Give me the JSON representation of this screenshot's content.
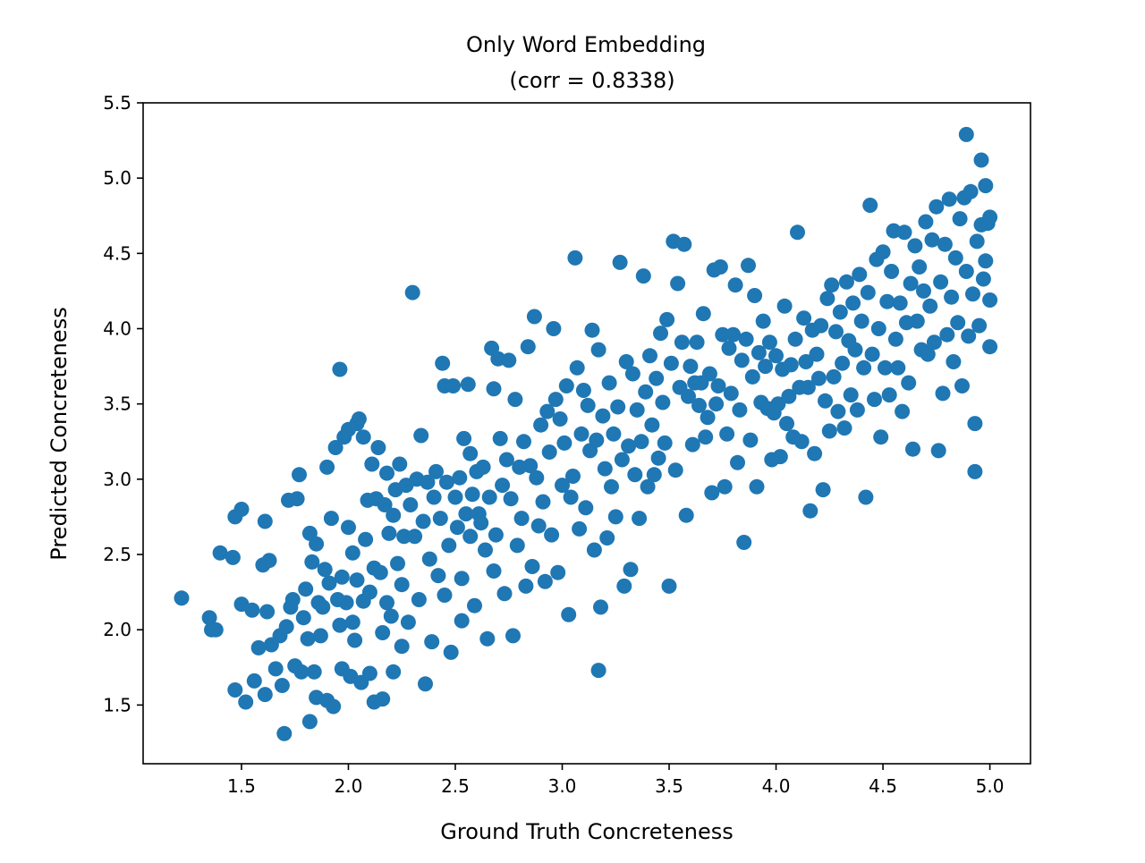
{
  "chart_data": {
    "type": "scatter",
    "title_line1": "Only Word Embedding",
    "title_line2": "(corr = 0.8338)",
    "xlabel": "Ground Truth Concreteness",
    "ylabel": "Predicted Concreteness",
    "xlim": [
      1.04,
      5.19
    ],
    "ylim": [
      1.11,
      5.5
    ],
    "xticks": [
      1.5,
      2.0,
      2.5,
      3.0,
      3.5,
      4.0,
      4.5,
      5.0
    ],
    "xtick_labels": [
      "1.5",
      "2.0",
      "2.5",
      "3.0",
      "3.5",
      "4.0",
      "4.5",
      "5.0"
    ],
    "yticks": [
      1.5,
      2.0,
      2.5,
      3.0,
      3.5,
      4.0,
      4.5,
      5.0,
      5.5
    ],
    "ytick_labels": [
      "1.5",
      "2.0",
      "2.5",
      "3.0",
      "3.5",
      "4.0",
      "4.5",
      "5.0",
      "5.5"
    ],
    "marker_color": "#1f77b4",
    "grid": false,
    "points": [
      [
        1.22,
        2.21
      ],
      [
        1.35,
        2.08
      ],
      [
        1.36,
        2.0
      ],
      [
        1.38,
        2.0
      ],
      [
        1.4,
        2.51
      ],
      [
        1.46,
        2.48
      ],
      [
        1.47,
        1.6
      ],
      [
        1.47,
        2.75
      ],
      [
        1.5,
        2.8
      ],
      [
        1.5,
        2.17
      ],
      [
        1.52,
        1.52
      ],
      [
        1.55,
        2.13
      ],
      [
        1.56,
        1.66
      ],
      [
        1.58,
        1.88
      ],
      [
        1.6,
        2.43
      ],
      [
        1.61,
        2.72
      ],
      [
        1.61,
        1.57
      ],
      [
        1.62,
        2.12
      ],
      [
        1.63,
        2.46
      ],
      [
        1.64,
        1.9
      ],
      [
        1.66,
        1.74
      ],
      [
        1.68,
        1.96
      ],
      [
        1.69,
        1.63
      ],
      [
        1.7,
        1.31
      ],
      [
        1.71,
        2.02
      ],
      [
        1.72,
        2.86
      ],
      [
        1.73,
        2.15
      ],
      [
        1.74,
        2.2
      ],
      [
        1.75,
        1.76
      ],
      [
        1.76,
        2.87
      ],
      [
        1.77,
        3.03
      ],
      [
        1.78,
        1.72
      ],
      [
        1.79,
        2.08
      ],
      [
        1.8,
        2.27
      ],
      [
        1.81,
        1.94
      ],
      [
        1.82,
        2.64
      ],
      [
        1.82,
        1.39
      ],
      [
        1.83,
        2.45
      ],
      [
        1.84,
        1.72
      ],
      [
        1.85,
        2.57
      ],
      [
        1.85,
        1.55
      ],
      [
        1.86,
        2.18
      ],
      [
        1.87,
        1.96
      ],
      [
        1.88,
        2.15
      ],
      [
        1.89,
        2.4
      ],
      [
        1.9,
        1.53
      ],
      [
        1.9,
        3.08
      ],
      [
        1.91,
        2.31
      ],
      [
        1.92,
        2.74
      ],
      [
        1.93,
        1.49
      ],
      [
        1.94,
        3.21
      ],
      [
        1.95,
        2.2
      ],
      [
        1.96,
        3.73
      ],
      [
        1.96,
        2.03
      ],
      [
        1.97,
        2.35
      ],
      [
        1.97,
        1.74
      ],
      [
        1.98,
        3.28
      ],
      [
        1.99,
        2.18
      ],
      [
        2.0,
        3.33
      ],
      [
        2.0,
        2.68
      ],
      [
        2.01,
        1.69
      ],
      [
        2.02,
        2.51
      ],
      [
        2.02,
        2.05
      ],
      [
        2.03,
        1.93
      ],
      [
        2.04,
        3.37
      ],
      [
        2.04,
        2.33
      ],
      [
        2.05,
        3.4
      ],
      [
        2.06,
        1.65
      ],
      [
        2.07,
        3.28
      ],
      [
        2.07,
        2.19
      ],
      [
        2.08,
        2.6
      ],
      [
        2.09,
        2.86
      ],
      [
        2.1,
        1.71
      ],
      [
        2.1,
        2.25
      ],
      [
        2.11,
        3.1
      ],
      [
        2.12,
        2.41
      ],
      [
        2.12,
        1.52
      ],
      [
        2.13,
        2.87
      ],
      [
        2.14,
        3.21
      ],
      [
        2.15,
        2.38
      ],
      [
        2.16,
        1.98
      ],
      [
        2.16,
        1.54
      ],
      [
        2.17,
        2.83
      ],
      [
        2.18,
        3.04
      ],
      [
        2.18,
        2.18
      ],
      [
        2.19,
        2.64
      ],
      [
        2.2,
        2.09
      ],
      [
        2.21,
        2.76
      ],
      [
        2.21,
        1.72
      ],
      [
        2.22,
        2.93
      ],
      [
        2.23,
        2.44
      ],
      [
        2.24,
        3.1
      ],
      [
        2.25,
        2.3
      ],
      [
        2.25,
        1.89
      ],
      [
        2.26,
        2.62
      ],
      [
        2.27,
        2.96
      ],
      [
        2.28,
        2.05
      ],
      [
        2.29,
        2.83
      ],
      [
        2.3,
        4.24
      ],
      [
        2.31,
        2.62
      ],
      [
        2.32,
        3.0
      ],
      [
        2.33,
        2.2
      ],
      [
        2.34,
        3.29
      ],
      [
        2.35,
        2.72
      ],
      [
        2.36,
        1.64
      ],
      [
        2.37,
        2.98
      ],
      [
        2.38,
        2.47
      ],
      [
        2.39,
        1.92
      ],
      [
        2.4,
        2.88
      ],
      [
        2.41,
        3.05
      ],
      [
        2.42,
        2.36
      ],
      [
        2.43,
        2.74
      ],
      [
        2.44,
        3.77
      ],
      [
        2.45,
        3.62
      ],
      [
        2.45,
        2.23
      ],
      [
        2.46,
        2.98
      ],
      [
        2.47,
        2.56
      ],
      [
        2.48,
        1.85
      ],
      [
        2.49,
        3.62
      ],
      [
        2.5,
        2.88
      ],
      [
        2.51,
        2.68
      ],
      [
        2.52,
        3.01
      ],
      [
        2.53,
        2.34
      ],
      [
        2.53,
        2.06
      ],
      [
        2.54,
        3.27
      ],
      [
        2.55,
        2.77
      ],
      [
        2.56,
        3.63
      ],
      [
        2.57,
        2.62
      ],
      [
        2.57,
        3.17
      ],
      [
        2.58,
        2.9
      ],
      [
        2.59,
        2.16
      ],
      [
        2.6,
        3.05
      ],
      [
        2.61,
        2.77
      ],
      [
        2.62,
        2.71
      ],
      [
        2.63,
        3.08
      ],
      [
        2.64,
        2.53
      ],
      [
        2.65,
        1.94
      ],
      [
        2.66,
        2.88
      ],
      [
        2.67,
        3.87
      ],
      [
        2.68,
        2.39
      ],
      [
        2.68,
        3.6
      ],
      [
        2.69,
        2.63
      ],
      [
        2.7,
        3.8
      ],
      [
        2.71,
        3.27
      ],
      [
        2.72,
        2.96
      ],
      [
        2.73,
        2.24
      ],
      [
        2.74,
        3.13
      ],
      [
        2.75,
        3.79
      ],
      [
        2.76,
        2.87
      ],
      [
        2.77,
        1.96
      ],
      [
        2.78,
        3.53
      ],
      [
        2.79,
        2.56
      ],
      [
        2.8,
        3.08
      ],
      [
        2.81,
        2.74
      ],
      [
        2.82,
        3.25
      ],
      [
        2.83,
        2.29
      ],
      [
        2.84,
        3.88
      ],
      [
        2.85,
        3.09
      ],
      [
        2.86,
        2.42
      ],
      [
        2.87,
        4.08
      ],
      [
        2.88,
        3.01
      ],
      [
        2.89,
        2.69
      ],
      [
        2.9,
        3.36
      ],
      [
        2.91,
        2.85
      ],
      [
        2.92,
        2.32
      ],
      [
        2.93,
        3.45
      ],
      [
        2.94,
        3.18
      ],
      [
        2.95,
        2.63
      ],
      [
        2.96,
        4.0
      ],
      [
        2.97,
        3.53
      ],
      [
        2.98,
        2.38
      ],
      [
        2.99,
        3.4
      ],
      [
        3.0,
        2.96
      ],
      [
        3.01,
        3.24
      ],
      [
        3.02,
        3.62
      ],
      [
        3.03,
        2.1
      ],
      [
        3.04,
        2.88
      ],
      [
        3.05,
        3.02
      ],
      [
        3.06,
        4.47
      ],
      [
        3.07,
        3.74
      ],
      [
        3.08,
        2.67
      ],
      [
        3.09,
        3.3
      ],
      [
        3.1,
        3.59
      ],
      [
        3.11,
        2.81
      ],
      [
        3.12,
        3.49
      ],
      [
        3.13,
        3.19
      ],
      [
        3.14,
        3.99
      ],
      [
        3.15,
        2.53
      ],
      [
        3.16,
        3.26
      ],
      [
        3.17,
        1.73
      ],
      [
        3.17,
        3.86
      ],
      [
        3.18,
        2.15
      ],
      [
        3.19,
        3.42
      ],
      [
        3.2,
        3.07
      ],
      [
        3.21,
        2.61
      ],
      [
        3.22,
        3.64
      ],
      [
        3.23,
        2.95
      ],
      [
        3.24,
        3.3
      ],
      [
        3.25,
        2.75
      ],
      [
        3.26,
        3.48
      ],
      [
        3.27,
        4.44
      ],
      [
        3.28,
        3.13
      ],
      [
        3.29,
        2.29
      ],
      [
        3.3,
        3.78
      ],
      [
        3.31,
        3.22
      ],
      [
        3.32,
        2.4
      ],
      [
        3.33,
        3.7
      ],
      [
        3.34,
        3.03
      ],
      [
        3.35,
        3.46
      ],
      [
        3.36,
        2.74
      ],
      [
        3.37,
        3.25
      ],
      [
        3.38,
        4.35
      ],
      [
        3.39,
        3.58
      ],
      [
        3.4,
        2.95
      ],
      [
        3.41,
        3.82
      ],
      [
        3.42,
        3.36
      ],
      [
        3.43,
        3.03
      ],
      [
        3.44,
        3.67
      ],
      [
        3.45,
        3.14
      ],
      [
        3.46,
        3.97
      ],
      [
        3.47,
        3.51
      ],
      [
        3.48,
        3.24
      ],
      [
        3.49,
        4.06
      ],
      [
        3.5,
        2.29
      ],
      [
        3.51,
        3.77
      ],
      [
        3.52,
        4.58
      ],
      [
        3.53,
        3.06
      ],
      [
        3.54,
        4.3
      ],
      [
        3.55,
        3.61
      ],
      [
        3.56,
        3.91
      ],
      [
        3.57,
        4.56
      ],
      [
        3.58,
        2.76
      ],
      [
        3.59,
        3.55
      ],
      [
        3.6,
        3.75
      ],
      [
        3.61,
        3.23
      ],
      [
        3.62,
        3.64
      ],
      [
        3.63,
        3.91
      ],
      [
        3.64,
        3.49
      ],
      [
        3.65,
        3.64
      ],
      [
        3.66,
        4.1
      ],
      [
        3.67,
        3.28
      ],
      [
        3.68,
        3.41
      ],
      [
        3.69,
        3.7
      ],
      [
        3.7,
        2.91
      ],
      [
        3.71,
        4.39
      ],
      [
        3.72,
        3.5
      ],
      [
        3.73,
        3.62
      ],
      [
        3.74,
        4.41
      ],
      [
        3.75,
        3.96
      ],
      [
        3.76,
        2.95
      ],
      [
        3.77,
        3.3
      ],
      [
        3.78,
        3.87
      ],
      [
        3.79,
        3.57
      ],
      [
        3.8,
        3.96
      ],
      [
        3.81,
        4.29
      ],
      [
        3.82,
        3.11
      ],
      [
        3.83,
        3.46
      ],
      [
        3.84,
        3.79
      ],
      [
        3.85,
        2.58
      ],
      [
        3.86,
        3.93
      ],
      [
        3.87,
        4.42
      ],
      [
        3.88,
        3.26
      ],
      [
        3.89,
        3.68
      ],
      [
        3.9,
        4.22
      ],
      [
        3.91,
        2.95
      ],
      [
        3.92,
        3.84
      ],
      [
        3.93,
        3.51
      ],
      [
        3.94,
        4.05
      ],
      [
        3.95,
        3.75
      ],
      [
        3.96,
        3.47
      ],
      [
        3.97,
        3.91
      ],
      [
        3.98,
        3.13
      ],
      [
        3.99,
        3.44
      ],
      [
        4.0,
        3.82
      ],
      [
        4.01,
        3.5
      ],
      [
        4.02,
        3.15
      ],
      [
        4.03,
        3.73
      ],
      [
        4.04,
        4.15
      ],
      [
        4.05,
        3.37
      ],
      [
        4.06,
        3.55
      ],
      [
        4.07,
        3.76
      ],
      [
        4.08,
        3.28
      ],
      [
        4.09,
        3.93
      ],
      [
        4.1,
        4.64
      ],
      [
        4.11,
        3.61
      ],
      [
        4.12,
        3.25
      ],
      [
        4.13,
        4.07
      ],
      [
        4.14,
        3.78
      ],
      [
        4.15,
        3.61
      ],
      [
        4.16,
        2.79
      ],
      [
        4.17,
        3.99
      ],
      [
        4.18,
        3.17
      ],
      [
        4.19,
        3.83
      ],
      [
        4.2,
        3.67
      ],
      [
        4.21,
        4.02
      ],
      [
        4.22,
        2.93
      ],
      [
        4.23,
        3.52
      ],
      [
        4.24,
        4.2
      ],
      [
        4.25,
        3.32
      ],
      [
        4.26,
        4.29
      ],
      [
        4.27,
        3.68
      ],
      [
        4.28,
        3.98
      ],
      [
        4.29,
        3.45
      ],
      [
        4.3,
        4.11
      ],
      [
        4.31,
        3.77
      ],
      [
        4.32,
        3.34
      ],
      [
        4.33,
        4.31
      ],
      [
        4.34,
        3.92
      ],
      [
        4.35,
        3.56
      ],
      [
        4.36,
        4.17
      ],
      [
        4.37,
        3.86
      ],
      [
        4.38,
        3.46
      ],
      [
        4.39,
        4.36
      ],
      [
        4.4,
        4.05
      ],
      [
        4.41,
        3.74
      ],
      [
        4.42,
        2.88
      ],
      [
        4.43,
        4.24
      ],
      [
        4.44,
        4.82
      ],
      [
        4.45,
        3.83
      ],
      [
        4.46,
        3.53
      ],
      [
        4.47,
        4.46
      ],
      [
        4.48,
        4.0
      ],
      [
        4.49,
        3.28
      ],
      [
        4.5,
        4.51
      ],
      [
        4.51,
        3.74
      ],
      [
        4.52,
        4.18
      ],
      [
        4.53,
        3.56
      ],
      [
        4.54,
        4.38
      ],
      [
        4.55,
        4.65
      ],
      [
        4.56,
        3.93
      ],
      [
        4.57,
        3.74
      ],
      [
        4.58,
        4.17
      ],
      [
        4.59,
        3.45
      ],
      [
        4.6,
        4.64
      ],
      [
        4.61,
        4.04
      ],
      [
        4.62,
        3.64
      ],
      [
        4.63,
        4.3
      ],
      [
        4.64,
        3.2
      ],
      [
        4.65,
        4.55
      ],
      [
        4.66,
        4.05
      ],
      [
        4.67,
        4.41
      ],
      [
        4.68,
        3.86
      ],
      [
        4.69,
        4.25
      ],
      [
        4.7,
        4.71
      ],
      [
        4.71,
        3.83
      ],
      [
        4.72,
        4.15
      ],
      [
        4.73,
        4.59
      ],
      [
        4.74,
        3.91
      ],
      [
        4.75,
        4.81
      ],
      [
        4.76,
        3.19
      ],
      [
        4.77,
        4.31
      ],
      [
        4.78,
        3.57
      ],
      [
        4.79,
        4.56
      ],
      [
        4.8,
        3.96
      ],
      [
        4.81,
        4.86
      ],
      [
        4.82,
        4.21
      ],
      [
        4.83,
        3.78
      ],
      [
        4.84,
        4.47
      ],
      [
        4.85,
        4.04
      ],
      [
        4.86,
        4.73
      ],
      [
        4.87,
        3.62
      ],
      [
        4.88,
        4.87
      ],
      [
        4.89,
        4.38
      ],
      [
        4.89,
        5.29
      ],
      [
        4.9,
        3.95
      ],
      [
        4.91,
        4.91
      ],
      [
        4.92,
        4.23
      ],
      [
        4.93,
        3.37
      ],
      [
        4.93,
        3.05
      ],
      [
        4.94,
        4.58
      ],
      [
        4.95,
        4.02
      ],
      [
        4.96,
        4.69
      ],
      [
        4.96,
        5.12
      ],
      [
        4.97,
        4.33
      ],
      [
        4.98,
        4.45
      ],
      [
        4.98,
        4.95
      ],
      [
        4.99,
        4.7
      ],
      [
        5.0,
        4.19
      ],
      [
        5.0,
        3.88
      ],
      [
        5.0,
        4.74
      ]
    ]
  }
}
